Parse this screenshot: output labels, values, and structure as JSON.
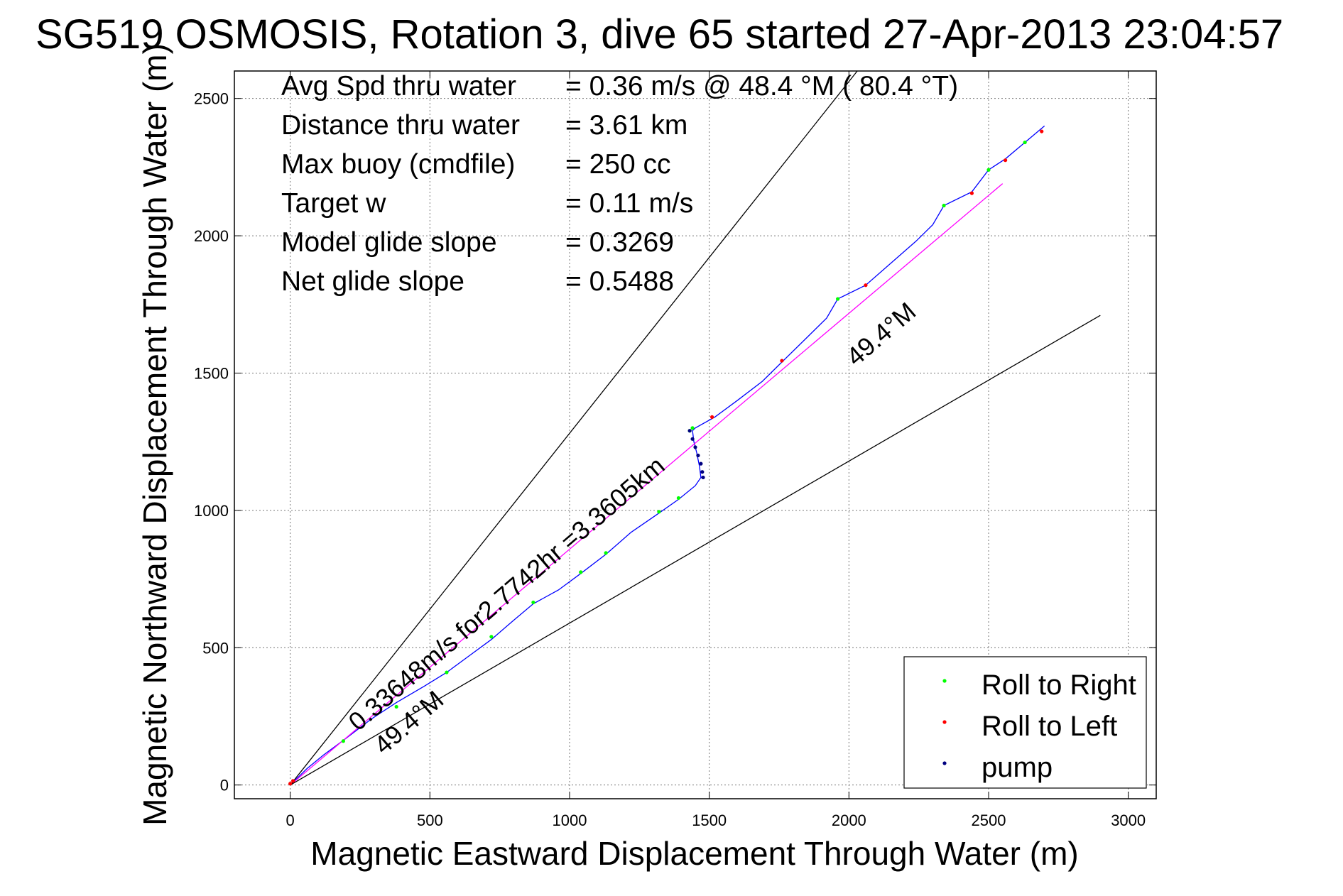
{
  "chart_data": {
    "type": "line",
    "title": "SG519 OSMOSIS, Rotation 3, dive 65 started 27-Apr-2013 23:04:57",
    "xlabel": "Magnetic Eastward Displacement Through Water (m)",
    "ylabel": "Magnetic Northward Displacement Through Water (m)",
    "xlim": [
      -200,
      3100
    ],
    "ylim": [
      -50,
      2600
    ],
    "xticks": [
      0,
      500,
      1000,
      1500,
      2000,
      2500,
      3000
    ],
    "yticks": [
      0,
      500,
      1000,
      1500,
      2000,
      2500
    ],
    "grid": true,
    "stats": [
      {
        "label": "Avg Spd thru water",
        "value": "=  0.36 m/s @  48.4 °M ( 80.4 °T)"
      },
      {
        "label": "Distance thru water",
        "value": "=  3.61 km"
      },
      {
        "label": "Max buoy (cmdfile)",
        "value": "= 250 cc"
      },
      {
        "label": "Target w",
        "value": "= 0.11 m/s"
      },
      {
        "label": "Model glide slope",
        "value": "= 0.3269"
      },
      {
        "label": "Net glide slope",
        "value": "= 0.5488"
      }
    ],
    "annotations": {
      "net": "0.33648m/s for2.7742hr =3.3605km",
      "heading_lower": "49.4°M",
      "heading_upper": "49.4°M"
    },
    "series": [
      {
        "name": "track",
        "color": "#0000ff",
        "x": [
          0,
          20,
          60,
          120,
          200,
          290,
          380,
          480,
          560,
          640,
          720,
          800,
          870,
          960,
          1040,
          1130,
          1220,
          1320,
          1390,
          1450,
          1470,
          1465,
          1455,
          1445,
          1440,
          1450,
          1520,
          1600,
          1690,
          1760,
          1840,
          1920,
          1960,
          2060,
          2150,
          2240,
          2300,
          2340,
          2440,
          2500,
          2560,
          2630,
          2700
        ],
        "y": [
          0,
          20,
          60,
          110,
          170,
          240,
          300,
          360,
          410,
          470,
          530,
          600,
          660,
          710,
          770,
          840,
          920,
          990,
          1040,
          1090,
          1120,
          1160,
          1210,
          1250,
          1290,
          1300,
          1340,
          1400,
          1470,
          1540,
          1620,
          1700,
          1770,
          1820,
          1900,
          1980,
          2040,
          2110,
          2160,
          2240,
          2280,
          2340,
          2400
        ]
      },
      {
        "name": "net-line",
        "color": "#ff00ff",
        "x": [
          0,
          2550
        ],
        "y": [
          0,
          2190
        ]
      },
      {
        "name": "bound-upper",
        "color": "#000000",
        "x": [
          0,
          2030
        ],
        "y": [
          0,
          2600
        ]
      },
      {
        "name": "bound-lower",
        "color": "#000000",
        "x": [
          0,
          2900
        ],
        "y": [
          0,
          1710
        ]
      }
    ],
    "markers": {
      "roll_right": {
        "x": [
          190,
          380,
          560,
          720,
          870,
          1040,
          1130,
          1320,
          1390,
          1430,
          1440,
          1960,
          2340,
          2500,
          2630
        ],
        "y": [
          160,
          285,
          410,
          540,
          665,
          775,
          845,
          995,
          1045,
          1290,
          1300,
          1770,
          2110,
          2240,
          2340
        ]
      },
      "roll_left": {
        "x": [
          0,
          10,
          1510,
          1760,
          2060,
          2440,
          2560,
          2690
        ],
        "y": [
          5,
          15,
          1340,
          1545,
          1820,
          2155,
          2275,
          2380
        ]
      },
      "pump": {
        "x": [
          1430,
          1440,
          1450,
          1460,
          1470,
          1475,
          1478
        ],
        "y": [
          1290,
          1260,
          1230,
          1200,
          1170,
          1140,
          1120
        ]
      }
    },
    "legend": {
      "position": "bottom-right",
      "entries": [
        {
          "label": "Roll to Right",
          "color": "#00ff00"
        },
        {
          "label": "Roll to Left",
          "color": "#ff0000"
        },
        {
          "label": "pump",
          "color": "#000080"
        }
      ]
    }
  }
}
